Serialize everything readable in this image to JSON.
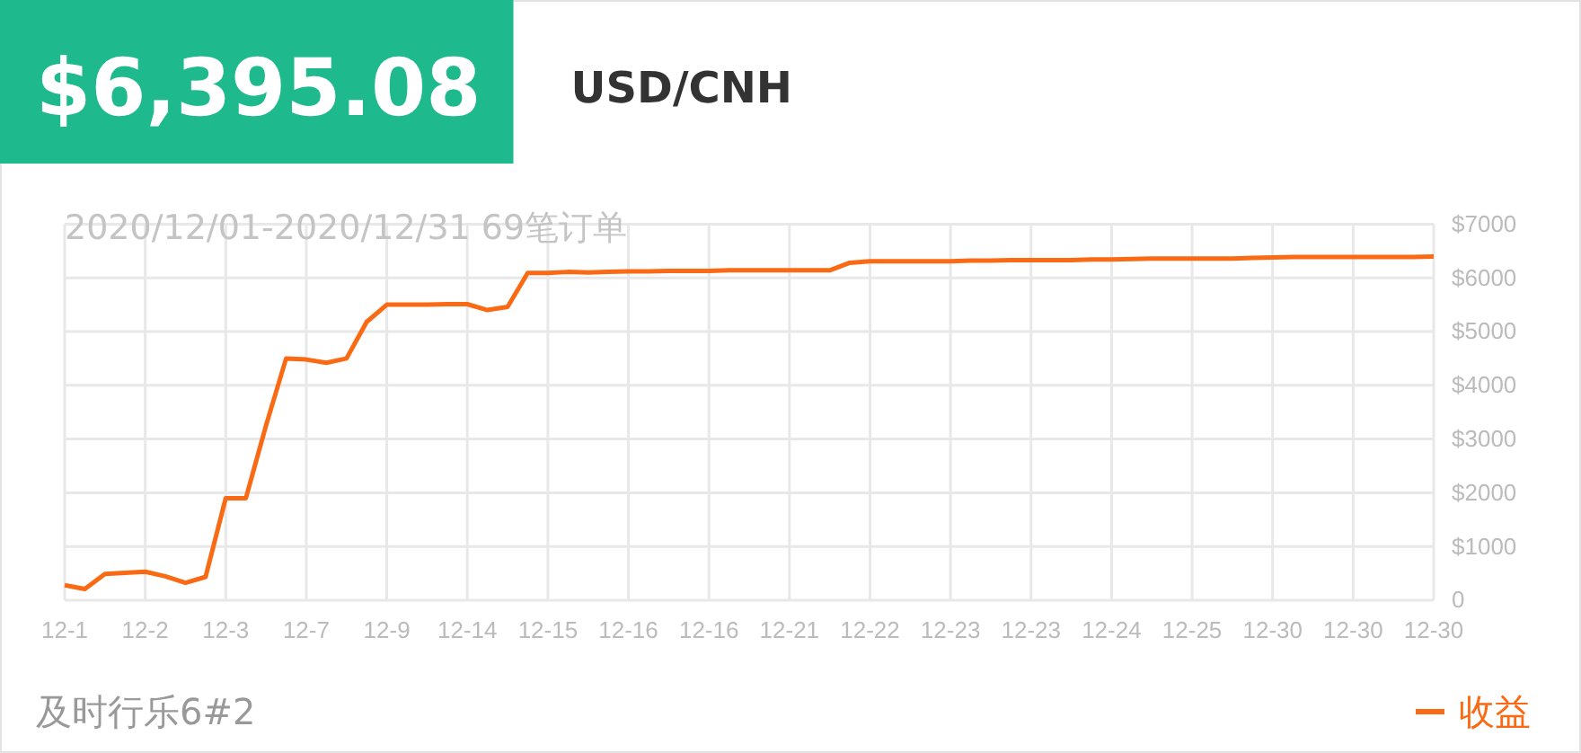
{
  "chart_data": {
    "type": "line",
    "title": "$6,395.08",
    "subtitle": "USD/CNH",
    "annotations": [
      "2020/12/01-2020/12/31 69笔订单",
      "及时行乐6#2"
    ],
    "categories": [
      "12-1",
      null,
      null,
      null,
      "12-2",
      null,
      null,
      null,
      "12-3",
      null,
      null,
      null,
      "12-7",
      null,
      null,
      null,
      "12-9",
      null,
      null,
      null,
      "12-14",
      null,
      null,
      null,
      "12-15",
      null,
      null,
      null,
      "12-16",
      null,
      null,
      null,
      "12-16",
      null,
      null,
      null,
      "12-21",
      null,
      null,
      null,
      "12-22",
      null,
      null,
      null,
      "12-23",
      null,
      null,
      null,
      "12-23",
      null,
      null,
      null,
      "12-24",
      null,
      null,
      null,
      "12-25",
      null,
      null,
      null,
      "12-30",
      null,
      null,
      null,
      "12-30",
      null,
      null,
      null,
      "12-30"
    ],
    "series": [
      {
        "name": "收益",
        "color": "#fa6a14",
        "values": [
          280,
          210,
          490,
          510,
          530,
          445,
          325,
          435,
          1900,
          1900,
          3250,
          4500,
          4480,
          4420,
          4500,
          5180,
          5500,
          5500,
          5500,
          5510,
          5510,
          5400,
          5460,
          6090,
          6090,
          6110,
          6100,
          6110,
          6120,
          6120,
          6130,
          6130,
          6130,
          6140,
          6140,
          6140,
          6140,
          6140,
          6140,
          6280,
          6310,
          6310,
          6310,
          6310,
          6310,
          6320,
          6320,
          6330,
          6330,
          6330,
          6330,
          6340,
          6340,
          6350,
          6360,
          6360,
          6360,
          6360,
          6360,
          6370,
          6380,
          6390,
          6390,
          6390,
          6390,
          6390,
          6390,
          6390,
          6395
        ]
      }
    ],
    "ylim": [
      0,
      7000
    ],
    "yticks": [
      0,
      {
        "value": 1000,
        "label": "$1000"
      },
      {
        "value": 2000,
        "label": "$2000"
      },
      {
        "value": 3000,
        "label": "$3000"
      },
      {
        "value": 4000,
        "label": "$4000"
      },
      {
        "value": 5000,
        "label": "$5000"
      },
      {
        "value": 6000,
        "label": "$6000"
      },
      {
        "value": 7000,
        "label": "$7000"
      }
    ],
    "grid": true,
    "legend": "bottom right",
    "marker": "none",
    "line_style": "solid"
  }
}
